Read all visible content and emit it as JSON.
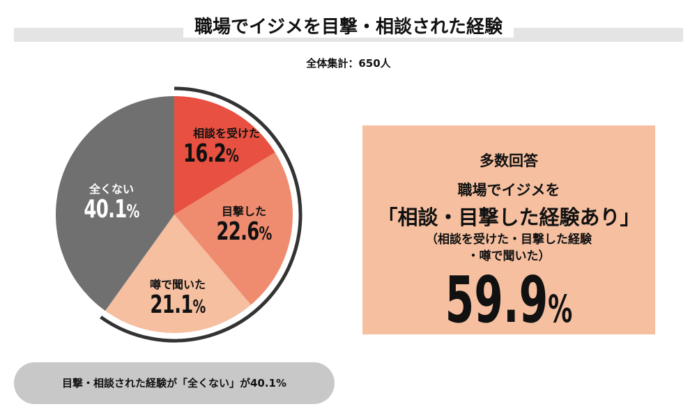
{
  "title": "職場でイジメを目撃・相談された経験",
  "subtitle": "全体集計：650人",
  "chart_data": {
    "type": "pie",
    "title": "職場でイジメを目撃・相談された経験",
    "total_label": "全体集計：650人",
    "start": "top",
    "direction": "clockwise",
    "slices": [
      {
        "label": "相談を受けた",
        "value": 16.2,
        "display": "16.2",
        "color": "#e85141"
      },
      {
        "label": "目撃した",
        "value": 22.6,
        "display": "22.6",
        "color": "#ef8b6f"
      },
      {
        "label": "噂で聞いた",
        "value": 21.1,
        "display": "21.1",
        "color": "#f5bfa0"
      },
      {
        "label": "全くない",
        "value": 40.1,
        "display": "40.1",
        "color": "#707070"
      }
    ],
    "highlight_arc": {
      "slices": [
        0,
        1,
        2
      ],
      "color": "#333333"
    },
    "percent_sign": "%"
  },
  "box": {
    "heading": "多数回答",
    "line1": "職場でイジメを",
    "line2": "「相談・目撃した経験あり」",
    "line3": "（相談を受けた・目撃した経験",
    "line4": "・噂で聞いた）",
    "value": "59.9",
    "unit": "%"
  },
  "note": "目撃・相談された経験が「全くない」が40.1%"
}
